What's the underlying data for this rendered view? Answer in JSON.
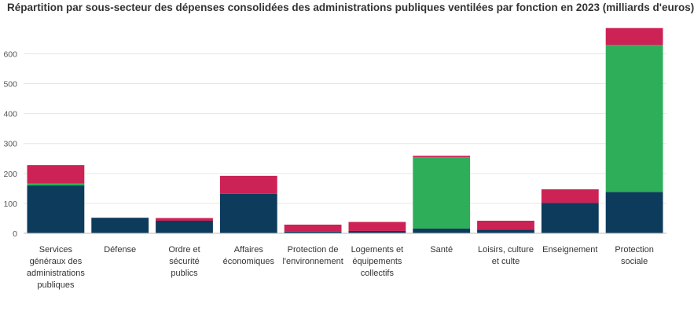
{
  "chart_data": {
    "type": "bar",
    "stacked": true,
    "title": "Répartition par sous-secteur des dépenses consolidées des administrations publiques ventilées par fonction en 2023 (milliards d'euros)",
    "xlabel": "",
    "ylabel": "",
    "ylim": [
      0,
      680
    ],
    "yticks": [
      0,
      100,
      200,
      300,
      400,
      500,
      600
    ],
    "grid": true,
    "legend": "none",
    "categories": [
      "Services généraux des administrations publiques",
      "Défense",
      "Ordre et sécurité publics",
      "Affaires économiques",
      "Protection de l'environnement",
      "Logements et équipements collectifs",
      "Santé",
      "Loisirs, culture et culte",
      "Enseignement",
      "Protection sociale"
    ],
    "category_lines": [
      [
        "Services",
        "généraux des",
        "administrations",
        "publiques"
      ],
      [
        "Défense"
      ],
      [
        "Ordre et",
        "sécurité",
        "publics"
      ],
      [
        "Affaires",
        "économiques"
      ],
      [
        "Protection de",
        "l'environnement"
      ],
      [
        "Logements et",
        "équipements",
        "collectifs"
      ],
      [
        "Santé"
      ],
      [
        "Loisirs, culture",
        "et culte"
      ],
      [
        "Enseignement"
      ],
      [
        "Protection",
        "sociale"
      ]
    ],
    "series": [
      {
        "color": "#0d3b5c",
        "values": [
          160,
          52,
          42,
          132,
          6,
          8,
          16,
          12,
          102,
          138
        ]
      },
      {
        "color": "#2fae5a",
        "values": [
          6,
          0,
          0,
          0,
          0,
          0,
          238,
          0,
          0,
          492
        ]
      },
      {
        "color": "#cc2256",
        "values": [
          62,
          0,
          9,
          60,
          23,
          30,
          5,
          30,
          45,
          56
        ]
      }
    ]
  }
}
